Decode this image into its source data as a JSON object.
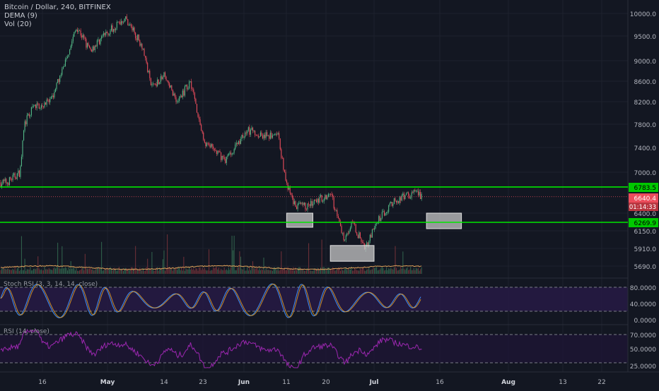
{
  "legend": {
    "symbol": "Bitcoin / Dollar, 240, BITFINEX",
    "dema": "DEMA (9)",
    "vol": "Vol (20)"
  },
  "price_axis": {
    "ticks": [
      "10000.0",
      "9500.0",
      "9000.0",
      "8600.0",
      "8200.0",
      "7800.0",
      "7400.0",
      "7000.0",
      "6400.0",
      "6150.0",
      "5910.0",
      "5690.0"
    ]
  },
  "price_badges": {
    "resistance": "6783.5",
    "last": "6640.4",
    "countdown": "01:14:33",
    "support": "6269.9"
  },
  "stoch": {
    "label": "Stoch RSI (3, 3, 14, 14, close)",
    "ticks": [
      "80.0000",
      "40.0000",
      "0.0000"
    ]
  },
  "rsi": {
    "label": "RSI (14, close)",
    "ticks": [
      "70.0000",
      "50.0000",
      "25.0000"
    ]
  },
  "time_axis": {
    "ticks": [
      "16",
      "May",
      "14",
      "23",
      "Jun",
      "11",
      "20",
      "Jul",
      "16",
      "Aug",
      "13",
      "22"
    ]
  },
  "colors": {
    "background": "#131722",
    "up": "#53b987",
    "down": "#eb4d5c",
    "level": "#00e600",
    "zone": "#c7c7c7",
    "stoch_k": "#3f8ef7",
    "stoch_d": "#f5a623",
    "rsi": "#9c27b0"
  },
  "chart_data": {
    "type": "candlestick",
    "symbol": "BTCUSD",
    "exchange": "BITFINEX",
    "interval_minutes": 240,
    "ylim": [
      5600,
      10150
    ],
    "price_path": [
      {
        "date": "Apr 8",
        "price": 6850
      },
      {
        "date": "Apr 11",
        "price": 7000
      },
      {
        "date": "Apr 12",
        "price": 7800
      },
      {
        "date": "Apr 14",
        "price": 8100
      },
      {
        "date": "Apr 18",
        "price": 8200
      },
      {
        "date": "Apr 21",
        "price": 8900
      },
      {
        "date": "Apr 24",
        "price": 9700
      },
      {
        "date": "Apr 27",
        "price": 9200
      },
      {
        "date": "Apr 30",
        "price": 9500
      },
      {
        "date": "May 5",
        "price": 9900
      },
      {
        "date": "May 9",
        "price": 9300
      },
      {
        "date": "May 11",
        "price": 8500
      },
      {
        "date": "May 14",
        "price": 8700
      },
      {
        "date": "May 17",
        "price": 8200
      },
      {
        "date": "May 20",
        "price": 8600
      },
      {
        "date": "May 23",
        "price": 7500
      },
      {
        "date": "May 28",
        "price": 7200
      },
      {
        "date": "Jun 2",
        "price": 7700
      },
      {
        "date": "Jun 6",
        "price": 7600
      },
      {
        "date": "Jun 9",
        "price": 7600
      },
      {
        "date": "Jun 11",
        "price": 6800
      },
      {
        "date": "Jun 13",
        "price": 6500
      },
      {
        "date": "Jun 16",
        "price": 6500
      },
      {
        "date": "Jun 21",
        "price": 6700
      },
      {
        "date": "Jun 24",
        "price": 6050
      },
      {
        "date": "Jun 26",
        "price": 6250
      },
      {
        "date": "Jun 29",
        "price": 5920
      },
      {
        "date": "Jul 2",
        "price": 6300
      },
      {
        "date": "Jul 5",
        "price": 6550
      },
      {
        "date": "Jul 10",
        "price": 6700
      },
      {
        "date": "Jul 12",
        "price": 6640
      }
    ],
    "levels": [
      {
        "price": 6783.5,
        "color": "#00e600"
      },
      {
        "price": 6269.9,
        "color": "#00e600"
      }
    ],
    "last_price": 6640.4,
    "zones": [
      {
        "date_start": "Jun 11",
        "date_end": "Jun 17",
        "price_top": 6400,
        "price_bottom": 6200
      },
      {
        "date_start": "Jun 21",
        "date_end": "Jul 1",
        "price_top": 5950,
        "price_bottom": 5750
      },
      {
        "date_start": "Jul 13",
        "date_end": "Jul 21",
        "price_top": 6400,
        "price_bottom": 6180
      }
    ],
    "stoch_rsi": {
      "ylim": [
        0,
        100
      ],
      "overbought": 80,
      "oversold": 20
    },
    "rsi": {
      "ylim": [
        20,
        80
      ],
      "upper": 70,
      "lower": 30
    }
  }
}
